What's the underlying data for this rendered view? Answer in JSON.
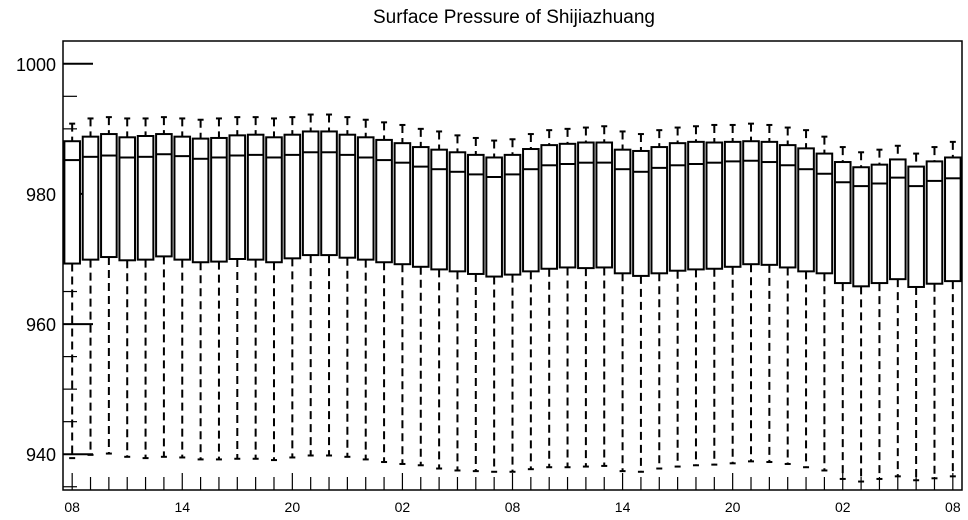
{
  "chart_data": {
    "type": "box",
    "title": "Surface Pressure of Shijiazhuang",
    "xlabel": "",
    "ylabel": "",
    "ylim": [
      934.5,
      1003.5
    ],
    "xlim": [
      -0.5,
      48.5
    ],
    "grid": false,
    "y_major_ticks": [
      940,
      960,
      980,
      1000
    ],
    "y_tick_labels": [
      "940",
      "960",
      "980",
      "1000"
    ],
    "x_tick_positions": [
      0,
      6,
      12,
      18,
      24,
      30,
      36,
      42,
      48
    ],
    "x_tick_labels": [
      "08",
      "14",
      "20",
      "02",
      "08",
      "14",
      "20",
      "02",
      "08"
    ],
    "series": [
      {
        "whisker_high": [
          990.8,
          991.6,
          991.8,
          991.6,
          991.6,
          991.8,
          991.6,
          991.4,
          991.6,
          991.8,
          991.8,
          991.6,
          991.8,
          992.2,
          992.2,
          991.8,
          991.4,
          991.0,
          990.6,
          990.0,
          989.6,
          989.0,
          988.6,
          988.2,
          988.4,
          989.2,
          989.8,
          990.0,
          990.2,
          990.4,
          989.6,
          989.2,
          989.8,
          990.2,
          990.4,
          990.6,
          990.6,
          990.8,
          990.6,
          990.2,
          989.8,
          988.8,
          987.2,
          986.4,
          986.8,
          987.4,
          986.2,
          987.2,
          988.0
        ],
        "q3": [
          988.1,
          988.8,
          989.2,
          988.7,
          988.9,
          989.2,
          988.8,
          988.5,
          988.6,
          989.0,
          989.1,
          988.7,
          989.1,
          989.6,
          989.6,
          989.1,
          988.7,
          988.3,
          987.8,
          987.2,
          986.8,
          986.4,
          986.0,
          985.6,
          986.0,
          986.9,
          987.5,
          987.7,
          987.9,
          987.9,
          986.8,
          986.6,
          987.2,
          987.8,
          988.0,
          987.9,
          988.0,
          988.1,
          988.0,
          987.5,
          987.0,
          986.2,
          984.9,
          984.1,
          984.5,
          985.3,
          984.2,
          985.0,
          985.6
        ],
        "median": [
          985.2,
          985.7,
          985.9,
          985.6,
          985.7,
          986.1,
          985.8,
          985.4,
          985.6,
          985.9,
          986.0,
          985.6,
          986.0,
          986.4,
          986.4,
          986.0,
          985.6,
          985.2,
          984.8,
          984.2,
          983.8,
          983.4,
          983.0,
          982.6,
          983.0,
          983.8,
          984.4,
          984.6,
          984.8,
          984.8,
          983.8,
          983.4,
          984.0,
          984.4,
          984.6,
          984.8,
          985.0,
          985.1,
          984.9,
          984.4,
          983.8,
          983.1,
          981.8,
          981.2,
          981.6,
          982.5,
          981.2,
          982.0,
          982.4
        ],
        "q1": [
          969.3,
          969.9,
          970.3,
          969.8,
          969.9,
          970.4,
          969.9,
          969.5,
          969.6,
          970.0,
          969.9,
          969.5,
          970.1,
          970.6,
          970.6,
          970.2,
          969.9,
          969.5,
          969.2,
          968.8,
          968.4,
          968.1,
          967.7,
          967.3,
          967.6,
          968.1,
          968.5,
          968.7,
          968.6,
          968.7,
          967.8,
          967.4,
          967.8,
          968.2,
          968.4,
          968.5,
          968.8,
          969.2,
          969.1,
          968.7,
          968.1,
          967.8,
          966.3,
          965.8,
          966.3,
          966.9,
          965.7,
          966.2,
          966.6
        ],
        "whisker_low": [
          939.4,
          939.9,
          940.1,
          939.6,
          939.4,
          939.6,
          939.5,
          939.2,
          939.2,
          939.3,
          939.3,
          939.1,
          939.5,
          939.8,
          939.8,
          939.6,
          939.2,
          938.8,
          938.5,
          938.3,
          937.8,
          937.5,
          937.4,
          937.3,
          937.3,
          937.7,
          938.0,
          938.0,
          938.1,
          938.2,
          937.4,
          937.3,
          937.8,
          938.1,
          938.3,
          938.4,
          938.6,
          938.9,
          938.8,
          938.5,
          938.0,
          937.5,
          936.2,
          935.8,
          936.2,
          936.6,
          936.0,
          936.3,
          936.6
        ]
      }
    ]
  }
}
